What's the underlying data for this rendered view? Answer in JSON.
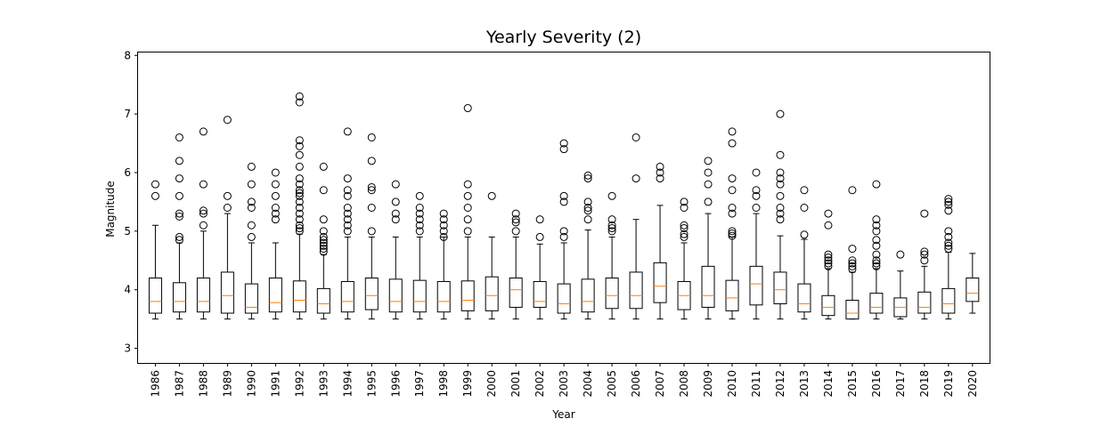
{
  "chart_data": {
    "type": "box",
    "title": "Yearly Severity (2)",
    "xlabel": "Year",
    "ylabel": "Magnitude",
    "ylim": [
      2.75,
      8.05
    ],
    "yticks": [
      3,
      4,
      5,
      6,
      7,
      8
    ],
    "grid": false,
    "colors": {
      "box": "#000000",
      "median": "#ff7f0e",
      "outlier": "#000000"
    },
    "boxes": [
      {
        "year": "1986",
        "whislo": 3.5,
        "q1": 3.6,
        "med": 3.8,
        "q3": 4.2,
        "whishi": 5.1,
        "fliers": [
          5.6,
          5.8
        ]
      },
      {
        "year": "1987",
        "whislo": 3.5,
        "q1": 3.62,
        "med": 3.8,
        "q3": 4.12,
        "whishi": 4.8,
        "fliers": [
          4.85,
          4.9,
          5.25,
          5.3,
          5.6,
          5.9,
          6.2,
          6.6
        ]
      },
      {
        "year": "1988",
        "whislo": 3.5,
        "q1": 3.62,
        "med": 3.8,
        "q3": 4.2,
        "whishi": 5.0,
        "fliers": [
          5.1,
          5.3,
          5.35,
          5.8,
          6.7
        ]
      },
      {
        "year": "1989",
        "whislo": 3.5,
        "q1": 3.6,
        "med": 3.9,
        "q3": 4.3,
        "whishi": 5.3,
        "fliers": [
          5.4,
          5.6,
          6.9
        ]
      },
      {
        "year": "1990",
        "whislo": 3.5,
        "q1": 3.6,
        "med": 3.7,
        "q3": 4.1,
        "whishi": 4.8,
        "fliers": [
          4.9,
          5.1,
          5.4,
          5.5,
          5.8,
          6.1
        ]
      },
      {
        "year": "1991",
        "whislo": 3.5,
        "q1": 3.62,
        "med": 3.78,
        "q3": 4.2,
        "whishi": 4.8,
        "fliers": [
          5.2,
          5.3,
          5.4,
          5.6,
          5.8,
          6.0
        ]
      },
      {
        "year": "1992",
        "whislo": 3.5,
        "q1": 3.62,
        "med": 3.82,
        "q3": 4.15,
        "whishi": 4.95,
        "fliers": [
          5.0,
          5.05,
          5.1,
          5.2,
          5.3,
          5.4,
          5.5,
          5.6,
          5.65,
          5.7,
          5.8,
          5.9,
          6.1,
          6.3,
          6.45,
          6.55,
          7.2,
          7.3
        ]
      },
      {
        "year": "1993",
        "whislo": 3.5,
        "q1": 3.6,
        "med": 3.76,
        "q3": 4.02,
        "whishi": 4.6,
        "fliers": [
          4.65,
          4.7,
          4.75,
          4.8,
          4.85,
          4.9,
          5.0,
          5.2,
          5.7,
          6.1
        ]
      },
      {
        "year": "1994",
        "whislo": 3.5,
        "q1": 3.62,
        "med": 3.8,
        "q3": 4.14,
        "whishi": 4.9,
        "fliers": [
          5.0,
          5.1,
          5.2,
          5.3,
          5.4,
          5.6,
          5.7,
          5.9,
          6.7
        ]
      },
      {
        "year": "1995",
        "whislo": 3.5,
        "q1": 3.66,
        "med": 3.9,
        "q3": 4.2,
        "whishi": 4.9,
        "fliers": [
          5.0,
          5.4,
          5.7,
          5.75,
          6.2,
          6.6
        ]
      },
      {
        "year": "1996",
        "whislo": 3.5,
        "q1": 3.62,
        "med": 3.8,
        "q3": 4.18,
        "whishi": 4.9,
        "fliers": [
          5.2,
          5.3,
          5.5,
          5.8
        ]
      },
      {
        "year": "1997",
        "whislo": 3.5,
        "q1": 3.62,
        "med": 3.8,
        "q3": 4.16,
        "whishi": 4.9,
        "fliers": [
          5.0,
          5.1,
          5.2,
          5.3,
          5.4,
          5.6
        ]
      },
      {
        "year": "1998",
        "whislo": 3.5,
        "q1": 3.62,
        "med": 3.8,
        "q3": 4.14,
        "whishi": 4.9,
        "fliers": [
          4.9,
          5.0,
          5.1,
          5.2,
          5.3
        ]
      },
      {
        "year": "1999",
        "whislo": 3.5,
        "q1": 3.64,
        "med": 3.82,
        "q3": 4.15,
        "whishi": 4.9,
        "fliers": [
          5.0,
          5.2,
          5.4,
          5.6,
          5.8,
          7.1
        ]
      },
      {
        "year": "2000",
        "whislo": 3.5,
        "q1": 3.64,
        "med": 3.9,
        "q3": 4.22,
        "whishi": 4.9,
        "fliers": [
          5.6
        ]
      },
      {
        "year": "2001",
        "whislo": 3.5,
        "q1": 3.7,
        "med": 4.0,
        "q3": 4.2,
        "whishi": 4.9,
        "fliers": [
          5.0,
          5.15,
          5.2,
          5.3
        ]
      },
      {
        "year": "2002",
        "whislo": 3.5,
        "q1": 3.7,
        "med": 3.8,
        "q3": 4.14,
        "whishi": 4.78,
        "fliers": [
          4.9,
          5.2
        ]
      },
      {
        "year": "2003",
        "whislo": 3.5,
        "q1": 3.6,
        "med": 3.76,
        "q3": 4.1,
        "whishi": 4.8,
        "fliers": [
          4.9,
          5.0,
          5.5,
          5.6,
          6.4,
          6.5
        ]
      },
      {
        "year": "2004",
        "whislo": 3.5,
        "q1": 3.62,
        "med": 3.8,
        "q3": 4.18,
        "whishi": 5.02,
        "fliers": [
          5.2,
          5.35,
          5.4,
          5.5,
          5.9,
          5.95
        ]
      },
      {
        "year": "2005",
        "whislo": 3.5,
        "q1": 3.68,
        "med": 3.9,
        "q3": 4.2,
        "whishi": 4.9,
        "fliers": [
          5.0,
          5.05,
          5.1,
          5.2,
          5.6
        ]
      },
      {
        "year": "2006",
        "whislo": 3.5,
        "q1": 3.68,
        "med": 3.9,
        "q3": 4.3,
        "whishi": 5.2,
        "fliers": [
          5.9,
          6.6
        ]
      },
      {
        "year": "2007",
        "whislo": 3.5,
        "q1": 3.78,
        "med": 4.06,
        "q3": 4.46,
        "whishi": 5.44,
        "fliers": [
          5.9,
          6.0,
          6.1
        ]
      },
      {
        "year": "2008",
        "whislo": 3.5,
        "q1": 3.66,
        "med": 3.9,
        "q3": 4.14,
        "whishi": 4.8,
        "fliers": [
          4.9,
          4.95,
          5.05,
          5.1,
          5.4,
          5.5
        ]
      },
      {
        "year": "2009",
        "whislo": 3.5,
        "q1": 3.7,
        "med": 3.9,
        "q3": 4.4,
        "whishi": 5.3,
        "fliers": [
          5.5,
          5.8,
          6.0,
          6.2
        ]
      },
      {
        "year": "2010",
        "whislo": 3.5,
        "q1": 3.64,
        "med": 3.86,
        "q3": 4.16,
        "whishi": 4.9,
        "fliers": [
          4.92,
          4.96,
          5.0,
          5.3,
          5.4,
          5.7,
          5.9,
          6.5,
          6.7
        ]
      },
      {
        "year": "2011",
        "whislo": 3.5,
        "q1": 3.74,
        "med": 4.1,
        "q3": 4.4,
        "whishi": 5.3,
        "fliers": [
          5.4,
          5.6,
          5.7,
          6.0
        ]
      },
      {
        "year": "2012",
        "whislo": 3.5,
        "q1": 3.76,
        "med": 4.0,
        "q3": 4.3,
        "whishi": 4.92,
        "fliers": [
          5.2,
          5.3,
          5.4,
          5.6,
          5.8,
          5.9,
          6.0,
          6.3,
          7.0
        ]
      },
      {
        "year": "2013",
        "whislo": 3.5,
        "q1": 3.62,
        "med": 3.76,
        "q3": 4.1,
        "whishi": 4.86,
        "fliers": [
          4.94,
          5.4,
          5.7
        ]
      },
      {
        "year": "2014",
        "whislo": 3.5,
        "q1": 3.56,
        "med": 3.7,
        "q3": 3.9,
        "whishi": 4.36,
        "fliers": [
          4.4,
          4.45,
          4.5,
          4.55,
          4.6,
          5.1,
          5.3
        ]
      },
      {
        "year": "2015",
        "whislo": 3.5,
        "q1": 3.5,
        "med": 3.6,
        "q3": 3.82,
        "whishi": 4.3,
        "fliers": [
          4.35,
          4.4,
          4.45,
          4.5,
          4.7,
          5.7
        ]
      },
      {
        "year": "2016",
        "whislo": 3.5,
        "q1": 3.6,
        "med": 3.7,
        "q3": 3.94,
        "whishi": 4.36,
        "fliers": [
          4.4,
          4.45,
          4.5,
          4.6,
          4.75,
          4.85,
          5.0,
          5.1,
          5.2,
          5.8
        ]
      },
      {
        "year": "2017",
        "whislo": 3.5,
        "q1": 3.54,
        "med": 3.7,
        "q3": 3.86,
        "whishi": 4.32,
        "fliers": [
          4.6
        ]
      },
      {
        "year": "2018",
        "whislo": 3.5,
        "q1": 3.6,
        "med": 3.7,
        "q3": 3.96,
        "whishi": 4.4,
        "fliers": [
          4.5,
          4.6,
          4.65,
          5.3
        ]
      },
      {
        "year": "2019",
        "whislo": 3.5,
        "q1": 3.6,
        "med": 3.76,
        "q3": 4.02,
        "whishi": 4.64,
        "fliers": [
          4.7,
          4.75,
          4.8,
          4.9,
          5.0,
          5.35,
          5.45,
          5.5,
          5.55
        ]
      },
      {
        "year": "2020",
        "whislo": 3.6,
        "q1": 3.8,
        "med": 3.94,
        "q3": 4.2,
        "whishi": 4.62,
        "fliers": []
      }
    ]
  }
}
